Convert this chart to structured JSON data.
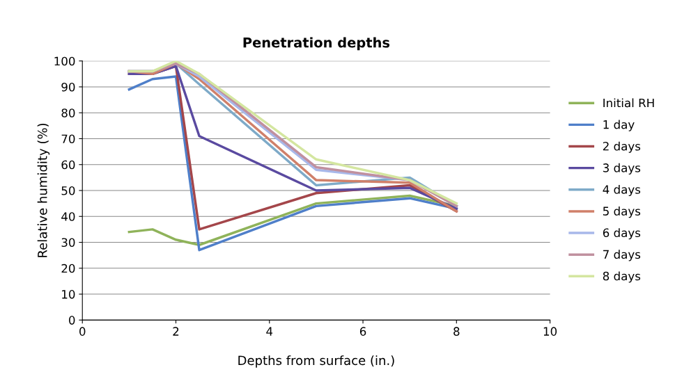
{
  "chart_data": {
    "type": "line",
    "title": "Penetration depths",
    "xlabel": "Depths from surface (in.)",
    "ylabel": "Relative humidity (%)",
    "x": [
      1,
      1.5,
      2,
      2.5,
      5,
      7,
      8
    ],
    "xlim": [
      0,
      10
    ],
    "xticks": [
      0,
      2,
      4,
      6,
      8,
      10
    ],
    "ylim": [
      0,
      100
    ],
    "yticks": [
      0,
      10,
      20,
      30,
      40,
      50,
      60,
      70,
      80,
      90,
      100
    ],
    "grid": "y",
    "legend": "right",
    "marker": "none",
    "line_style": "solid",
    "series": [
      {
        "name": "Initial RH",
        "color": "#8fb35a",
        "values": [
          34,
          35,
          31,
          29,
          45,
          48,
          44
        ]
      },
      {
        "name": "1 day",
        "color": "#4f7fc9",
        "values": [
          89,
          93,
          94,
          27,
          44,
          47,
          43
        ]
      },
      {
        "name": "2 days",
        "color": "#a4464a",
        "values": [
          95,
          95,
          98,
          35,
          49,
          52,
          42
        ]
      },
      {
        "name": "3 days",
        "color": "#5a4aa0",
        "values": [
          95,
          95,
          98,
          71,
          50,
          51,
          43
        ]
      },
      {
        "name": "4 days",
        "color": "#7eaac8",
        "values": [
          96,
          96,
          99,
          91,
          52,
          55,
          44
        ]
      },
      {
        "name": "5 days",
        "color": "#d0806a",
        "values": [
          96,
          95,
          99,
          93,
          54,
          53,
          42
        ]
      },
      {
        "name": "6 days",
        "color": "#a8b8ea",
        "values": [
          96,
          96,
          99,
          94,
          58,
          54,
          44
        ]
      },
      {
        "name": "7 days",
        "color": "#c0909f",
        "values": [
          96,
          96,
          99,
          95,
          59,
          54,
          44
        ]
      },
      {
        "name": "8 days",
        "color": "#d4e6a0",
        "values": [
          96,
          96,
          100,
          95,
          62,
          54,
          45
        ]
      }
    ]
  }
}
